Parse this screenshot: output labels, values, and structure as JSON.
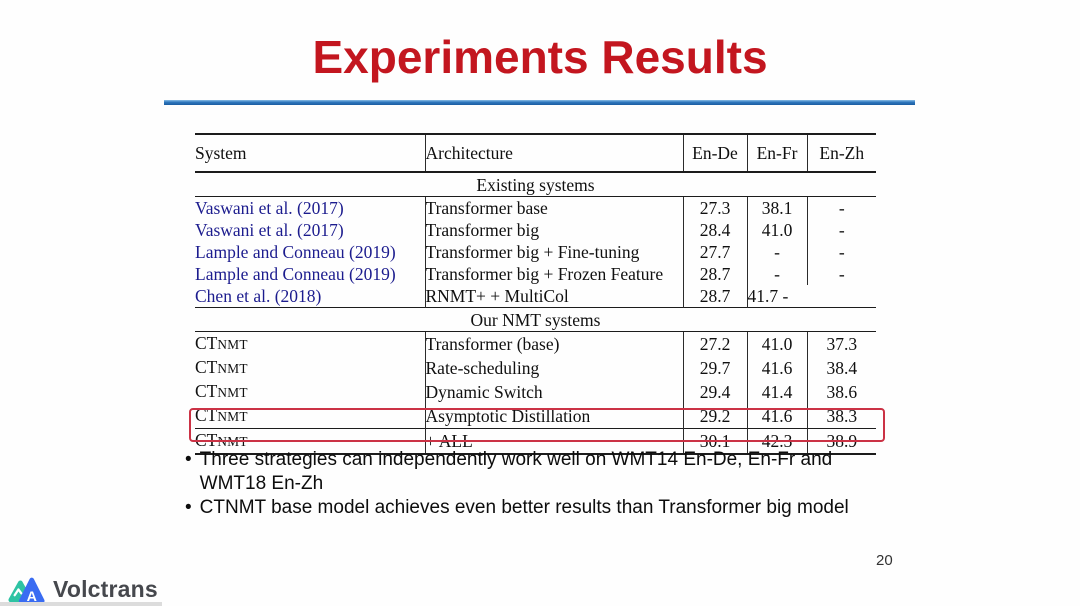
{
  "slide": {
    "title": "Experiments Results",
    "page_number": "20"
  },
  "table": {
    "headers": [
      "System",
      "Architecture",
      "En-De",
      "En-Fr",
      "En-Zh"
    ],
    "sections": [
      {
        "label": "Existing systems",
        "rows": [
          {
            "system": "Vaswani et al. (2017)",
            "arch": "Transformer base",
            "ende": "27.3",
            "enfr": "38.1",
            "enzh": "-"
          },
          {
            "system": "Vaswani et al. (2017)",
            "arch": "Transformer big",
            "ende": "28.4",
            "enfr": "41.0",
            "enzh": "-"
          },
          {
            "system": "Lample and Conneau (2019)",
            "arch": "Transformer big + Fine-tuning",
            "ende": "27.7",
            "enfr": "-",
            "enzh": "-"
          },
          {
            "system": "Lample and Conneau (2019)",
            "arch": "Transformer big + Frozen Feature",
            "ende": "28.7",
            "enfr": "-",
            "enzh": "-"
          },
          {
            "system": "Chen et al. (2018)",
            "arch": "RNMT+ + MultiCol",
            "ende": "28.7",
            "enfr_enzh": "41.7 -"
          }
        ]
      },
      {
        "label": "Our NMT systems",
        "rows": [
          {
            "system": "CTNMT",
            "arch": "Transformer (base)",
            "ende": "27.2",
            "enfr": "41.0",
            "enzh": "37.3"
          },
          {
            "system": "CTNMT",
            "arch": "Rate-scheduling",
            "ende": "29.7",
            "enfr": "41.6",
            "enzh": "38.4"
          },
          {
            "system": "CTNMT",
            "arch": "Dynamic Switch",
            "ende": "29.4",
            "enfr": "41.4",
            "enzh": "38.6"
          },
          {
            "system": "CTNMT",
            "arch": "Asymptotic Distillation",
            "ende": "29.2",
            "enfr": "41.6",
            "enzh": "38.3"
          },
          {
            "system": "CTNMT",
            "arch": "+ ALL",
            "ende": "30.1",
            "enfr": "42.3",
            "enzh": "38.9"
          }
        ]
      }
    ]
  },
  "bullets": [
    "Three strategies can independently  work well on WMT14 En-De, En-Fr and WMT18 En-Zh",
    "CTNMT base model achieves even better results than Transformer big model"
  ],
  "footer": {
    "logo_text": "Volctrans",
    "logo_letter": "A"
  },
  "colors": {
    "title_red": "#c3161f",
    "divider_blue": "#2d77bd",
    "citation_blue": "#1c1c8e",
    "highlight_red": "#cb3245",
    "logo_teal": "#2ec3a3",
    "logo_blue": "#3a6cf2"
  }
}
